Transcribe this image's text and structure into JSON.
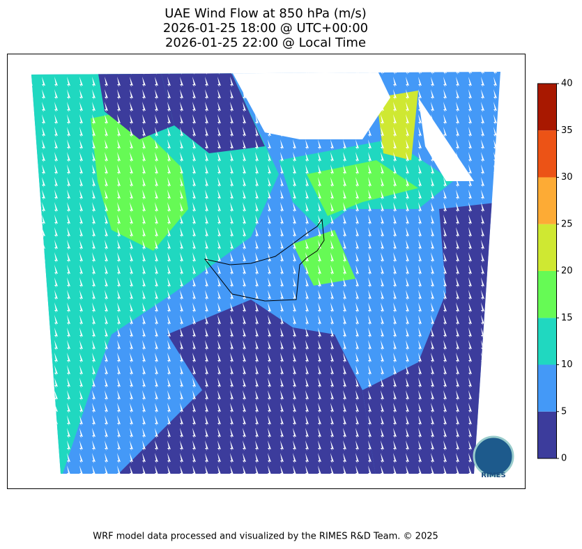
{
  "header": {
    "title_lines": [
      "UAE Wind Flow at 850 hPa (m/s)",
      "2026-01-25 18:00 @ UTC+00:00",
      "2026-01-25 22:00 @ Local Time"
    ]
  },
  "colorbar": {
    "ticks": [
      0,
      5,
      10,
      15,
      20,
      25,
      30,
      35,
      40
    ],
    "colors": [
      "#3c3c9c",
      "#4499f7",
      "#20d8c0",
      "#66fa55",
      "#cfe832",
      "#fdab35",
      "#ec5316",
      "#a81800"
    ]
  },
  "logo": {
    "text": "RIMES"
  },
  "footer": {
    "text": "WRF model data processed and visualized by the RIMES R&D Team. © 2025"
  }
}
